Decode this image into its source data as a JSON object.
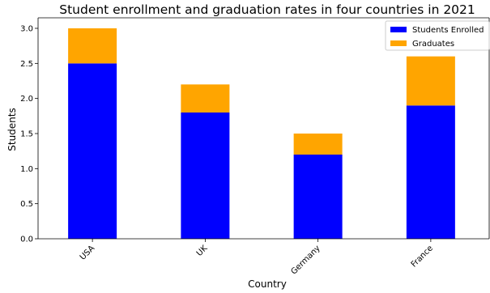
{
  "chart_data": {
    "type": "bar",
    "stacked": true,
    "title": "Student enrollment and graduation rates in four countries in 2021",
    "xlabel": "Country",
    "ylabel": "Students",
    "categories": [
      "USA",
      "UK",
      "Germany",
      "France"
    ],
    "series": [
      {
        "name": "Students Enrolled",
        "values": [
          2.5,
          1.8,
          1.2,
          1.9
        ],
        "color": "#0000ff"
      },
      {
        "name": "Graduates",
        "values": [
          0.5,
          0.4,
          0.3,
          0.7
        ],
        "color": "#ffa500"
      }
    ],
    "ylim": [
      0,
      3.15
    ],
    "yticks": [
      "0.0",
      "0.5",
      "1.0",
      "1.5",
      "2.0",
      "2.5",
      "3.0"
    ],
    "legend_position": "top-right",
    "grid": false
  }
}
